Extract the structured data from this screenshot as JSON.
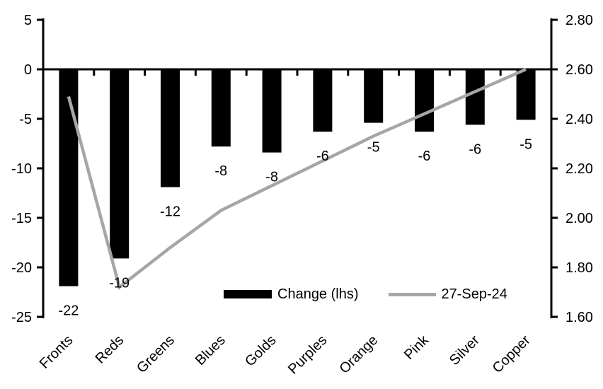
{
  "chart_data": {
    "type": "bar",
    "subtype": "bar-with-line-dual-axis",
    "title": "",
    "categories": [
      "Fronts",
      "Reds",
      "Greens",
      "Blues",
      "Golds",
      "Purples",
      "Orange",
      "Pink",
      "Silver",
      "Copper"
    ],
    "series": [
      {
        "name": "Change (lhs)",
        "type": "bar",
        "axis": "left",
        "color": "#000000",
        "values": [
          -22,
          -19,
          -12,
          -8,
          -8,
          -6,
          -5,
          -6,
          -6,
          -5
        ],
        "values_precise": [
          -21.9,
          -19.1,
          -11.9,
          -7.8,
          -8.4,
          -6.3,
          -5.4,
          -6.3,
          -5.6,
          -5.1
        ],
        "data_labels": [
          "-22",
          "-19",
          "-12",
          "-8",
          "-8",
          "-6",
          "-5",
          "-6",
          "-6",
          "-5"
        ]
      },
      {
        "name": "27-Sep-24",
        "type": "line",
        "axis": "right",
        "color": "#a6a6a6",
        "values": [
          2.49,
          1.72,
          1.88,
          2.03,
          2.13,
          2.23,
          2.33,
          2.42,
          2.51,
          2.6
        ]
      }
    ],
    "left_axis": {
      "min": -25,
      "max": 5,
      "tick_step": 5,
      "tick_labels": [
        "5",
        "0",
        "-5",
        "-10",
        "-15",
        "-20",
        "-25"
      ]
    },
    "right_axis": {
      "min": 1.6,
      "max": 2.8,
      "tick_step": 0.2,
      "tick_labels": [
        "2.80",
        "2.60",
        "2.40",
        "2.20",
        "2.00",
        "1.80",
        "1.60"
      ]
    },
    "legend": {
      "position": "inside-bottom-center",
      "entries": [
        {
          "label": "Change (lhs)",
          "swatch": "bar",
          "color": "#000000"
        },
        {
          "label": "27-Sep-24",
          "swatch": "line",
          "color": "#a6a6a6"
        }
      ]
    },
    "grid": false,
    "background": "#ffffff",
    "axis_color": "#000000",
    "text_color": "#000000"
  }
}
